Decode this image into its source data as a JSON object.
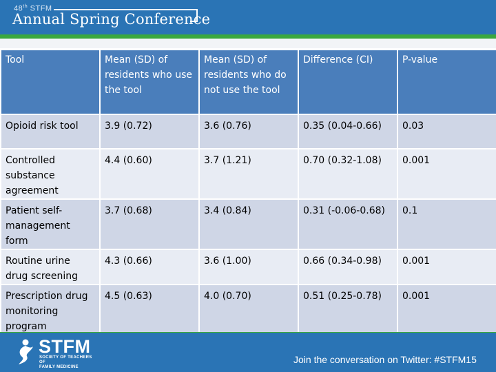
{
  "header": {
    "edition_number": "48",
    "edition_suffix": "th",
    "edition_org": "STFM",
    "conference_name": "Annual Spring Conference"
  },
  "table": {
    "columns": [
      "Tool",
      "Mean (SD) of residents who use the tool",
      "Mean (SD) of residents who do not use the tool",
      "Difference (CI)",
      "P-value"
    ],
    "rows": [
      [
        "Opioid risk tool",
        "3.9 (0.72)",
        "3.6 (0.76)",
        "0.35 (0.04-0.66)",
        "0.03"
      ],
      [
        "Controlled substance agreement",
        "4.4 (0.60)",
        "3.7 (1.21)",
        "0.70 (0.32-1.08)",
        "0.001"
      ],
      [
        "Patient self-management form",
        "3.7 (0.68)",
        "3.4 (0.84)",
        "0.31 (-0.06-0.68)",
        "0.1"
      ],
      [
        "Routine urine drug screening",
        "4.3 (0.66)",
        "3.6 (1.00)",
        "0.66 (0.34-0.98)",
        "0.001"
      ],
      [
        "Prescription drug monitoring program",
        "4.5 (0.63)",
        "4.0 (0.70)",
        "0.51 (0.25-0.78)",
        "0.001"
      ]
    ]
  },
  "footer": {
    "logo_acronym": "STFM",
    "logo_line1": "SOCIETY OF TEACHERS OF",
    "logo_line2": "FAMILY MEDICINE",
    "twitter_cta": "Join the conversation on Twitter: #STFM15"
  },
  "colors": {
    "header_blue": "#2a74b5",
    "accent_green": "#3aa83f",
    "table_header": "#4a7ebb",
    "row_dark": "#cfd6e6",
    "row_light": "#e8ecf4"
  }
}
